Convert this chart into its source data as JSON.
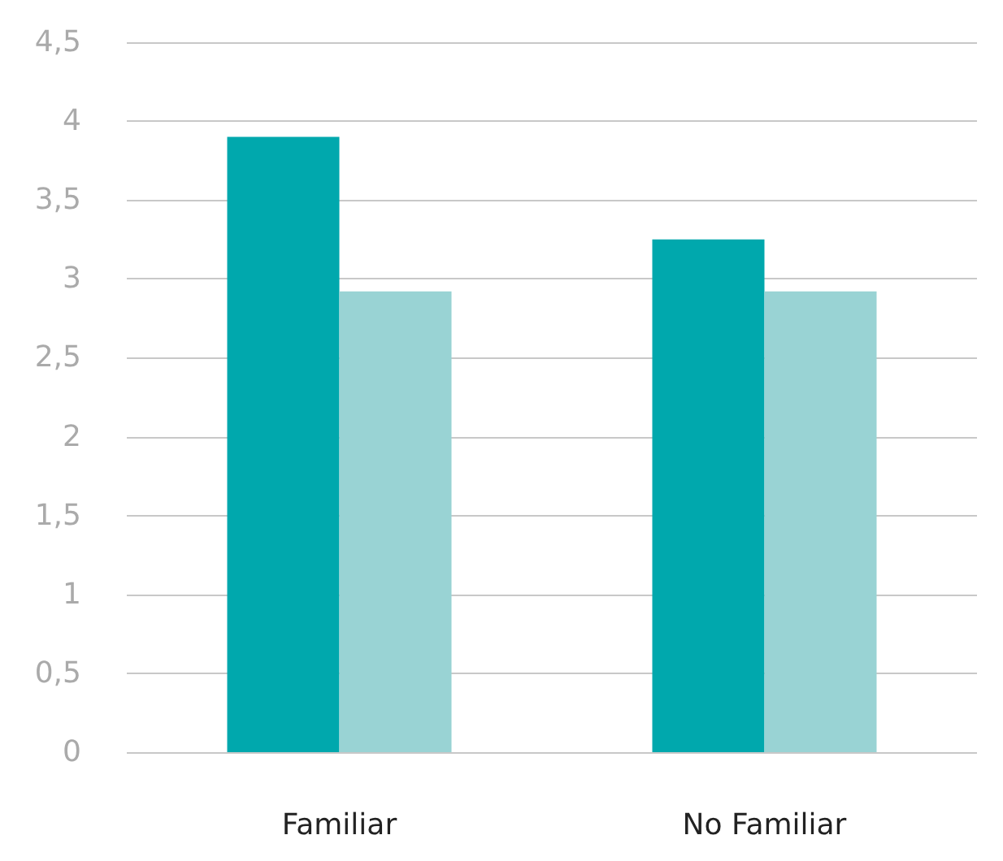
{
  "chart_data": {
    "type": "bar",
    "categories": [
      "Familiar",
      "No Familiar"
    ],
    "series": [
      {
        "color": "#00a8ad",
        "values": [
          3.9,
          3.25
        ]
      },
      {
        "color": "#99d3d4",
        "values": [
          2.92,
          2.92
        ]
      }
    ],
    "ylim": [
      0,
      4.5
    ],
    "yticks": [
      0,
      {
        "value": 0.5,
        "label": "0,5"
      },
      1,
      {
        "value": 1.5,
        "label": "1,5"
      },
      2,
      {
        "value": 2.5,
        "label": "2,5"
      },
      3,
      {
        "value": 3.5,
        "label": "3,5"
      },
      4,
      {
        "value": 4.5,
        "label": "4,5"
      }
    ],
    "grid": "y"
  }
}
